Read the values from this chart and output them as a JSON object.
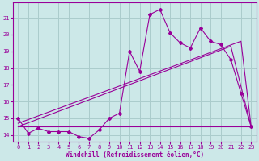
{
  "xlabel": "Windchill (Refroidissement éolien,°C)",
  "bg_color": "#cce8e8",
  "grid_color": "#aacccc",
  "line_color": "#990099",
  "x_data": [
    0,
    1,
    2,
    3,
    4,
    5,
    6,
    7,
    8,
    9,
    10,
    11,
    12,
    13,
    14,
    15,
    16,
    17,
    18,
    19,
    20,
    21,
    22,
    23
  ],
  "y_main": [
    15.0,
    14.1,
    14.4,
    14.2,
    14.2,
    14.2,
    13.9,
    13.8,
    14.3,
    15.0,
    15.3,
    19.0,
    17.8,
    21.2,
    21.5,
    20.1,
    19.5,
    19.2,
    20.4,
    19.6,
    19.4,
    18.5,
    16.5,
    14.5
  ],
  "y_flat": [
    14.5,
    14.5,
    14.5,
    14.5,
    14.5,
    14.5,
    14.5,
    14.5,
    14.5,
    14.5,
    14.5,
    14.5,
    14.5,
    14.5,
    14.5,
    14.5,
    14.5,
    14.5,
    14.5,
    14.5,
    14.5,
    14.5,
    14.5,
    14.5
  ],
  "trend1_x": [
    0,
    21,
    23
  ],
  "trend1_y": [
    14.5,
    19.3,
    14.5
  ],
  "trend2_x": [
    0,
    22,
    23
  ],
  "trend2_y": [
    14.7,
    19.6,
    14.5
  ],
  "ylim": [
    13.6,
    21.9
  ],
  "xlim": [
    -0.5,
    23.5
  ],
  "yticks": [
    14,
    15,
    16,
    17,
    18,
    19,
    20,
    21
  ],
  "xticks": [
    0,
    1,
    2,
    3,
    4,
    5,
    6,
    7,
    8,
    9,
    10,
    11,
    12,
    13,
    14,
    15,
    16,
    17,
    18,
    19,
    20,
    21,
    22,
    23
  ]
}
